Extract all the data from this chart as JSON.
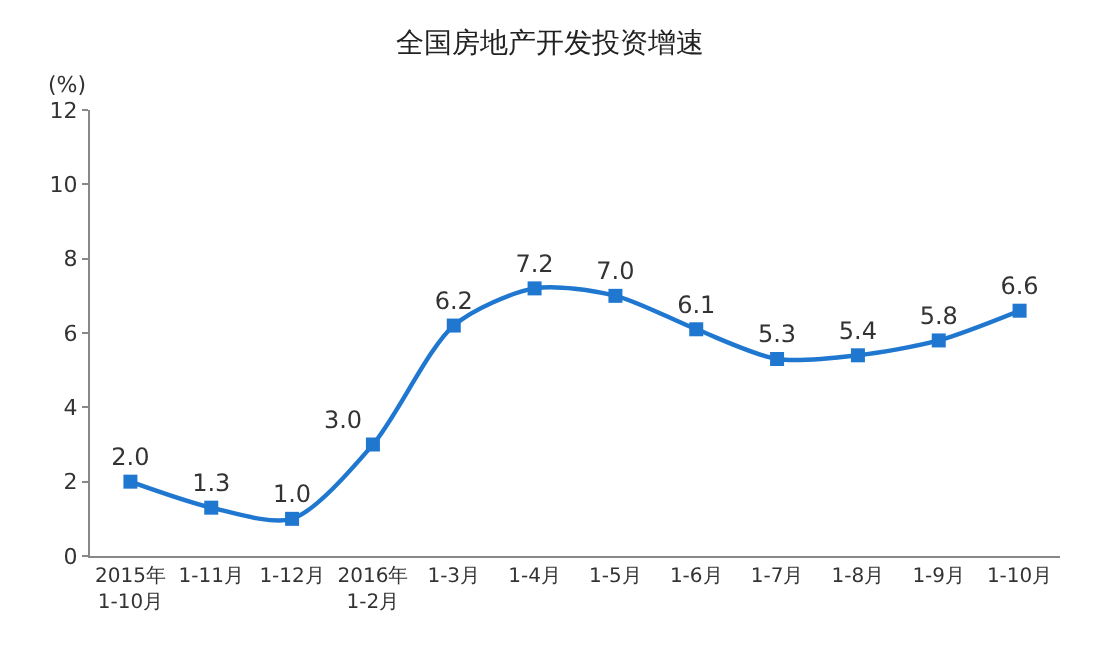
{
  "chart_data": {
    "type": "line",
    "title": "全国房地产开发投资增速",
    "ylabel": "(%)",
    "categories": [
      "2015年\n1-10月",
      "1-11月",
      "1-12月",
      "2016年\n1-2月",
      "1-3月",
      "1-4月",
      "1-5月",
      "1-6月",
      "1-7月",
      "1-8月",
      "1-9月",
      "1-10月"
    ],
    "series": [
      {
        "color": "#1f77d0",
        "values": [
          2.0,
          1.3,
          1.0,
          3.0,
          6.2,
          7.2,
          7.0,
          6.1,
          5.3,
          5.4,
          5.8,
          6.6
        ],
        "value_labels": [
          "2.0",
          "1.3",
          "1.0",
          "3.0",
          "6.2",
          "7.2",
          "7.0",
          "6.1",
          "5.3",
          "5.4",
          "5.8",
          "6.6"
        ]
      }
    ],
    "ylim": [
      0,
      12
    ],
    "yticks": [
      0,
      2,
      4,
      6,
      8,
      10,
      12
    ],
    "grid": false,
    "marker": "square",
    "line_style": "solid"
  }
}
